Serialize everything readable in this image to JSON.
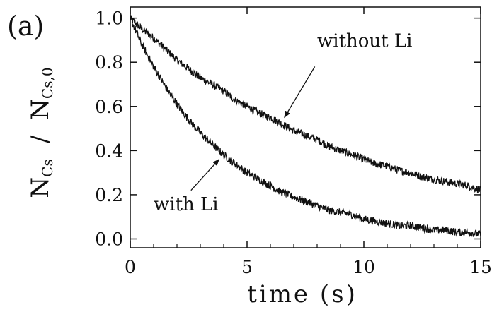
{
  "chart_data": {
    "type": "line",
    "panel_label": "(a)",
    "xlabel": "time (s)",
    "ylabel": {
      "prefix": "N",
      "prefix_sub": "Cs",
      "slash": "/",
      "denominator": "N",
      "denominator_sub": "Cs,0"
    },
    "xlim": [
      0,
      15
    ],
    "ylim": [
      -0.04,
      1.05
    ],
    "x_ticks": [
      0,
      5,
      10,
      15
    ],
    "x_tick_labels": [
      "0",
      "5",
      "10",
      "15"
    ],
    "y_ticks": [
      0.0,
      0.2,
      0.4,
      0.6,
      0.8,
      1.0
    ],
    "y_tick_labels": [
      "0.0",
      "0.2",
      "0.4",
      "0.6",
      "0.8",
      "1.0"
    ],
    "grid": false,
    "legend": "none",
    "line_color": "#111111",
    "series": [
      {
        "name": "without Li",
        "x": [
          0,
          0.5,
          1,
          1.5,
          2,
          2.5,
          3,
          3.5,
          4,
          4.5,
          5,
          5.5,
          6,
          6.5,
          7,
          7.5,
          8,
          8.5,
          9,
          9.5,
          10,
          10.5,
          11,
          11.5,
          12,
          12.5,
          13,
          13.5,
          14,
          14.5,
          15
        ],
        "y": [
          1.0,
          0.95,
          0.91,
          0.86,
          0.81,
          0.77,
          0.73,
          0.7,
          0.67,
          0.63,
          0.6,
          0.57,
          0.55,
          0.52,
          0.49,
          0.47,
          0.45,
          0.42,
          0.4,
          0.38,
          0.36,
          0.34,
          0.33,
          0.31,
          0.3,
          0.28,
          0.27,
          0.26,
          0.25,
          0.24,
          0.22
        ]
      },
      {
        "name": "with Li",
        "x": [
          0,
          0.5,
          1,
          1.5,
          2,
          2.5,
          3,
          3.5,
          4,
          4.5,
          5,
          5.5,
          6,
          6.5,
          7,
          7.5,
          8,
          8.5,
          9,
          9.5,
          10,
          10.5,
          11,
          11.5,
          12,
          12.5,
          13,
          13.5,
          14,
          14.5,
          15
        ],
        "y": [
          1.0,
          0.88,
          0.78,
          0.69,
          0.61,
          0.54,
          0.48,
          0.43,
          0.38,
          0.34,
          0.3,
          0.27,
          0.24,
          0.21,
          0.19,
          0.17,
          0.15,
          0.13,
          0.12,
          0.11,
          0.09,
          0.08,
          0.07,
          0.06,
          0.06,
          0.05,
          0.04,
          0.04,
          0.03,
          0.03,
          0.02
        ]
      }
    ],
    "annotations": [
      {
        "text": "without Li",
        "label_at": [
          8.0,
          0.87
        ],
        "arrow_from": [
          7.9,
          0.78
        ],
        "arrow_to": [
          6.6,
          0.55
        ]
      },
      {
        "text": "with Li",
        "label_at": [
          1.0,
          0.13
        ],
        "arrow_from": [
          2.6,
          0.22
        ],
        "arrow_to": [
          3.8,
          0.36
        ]
      }
    ]
  }
}
